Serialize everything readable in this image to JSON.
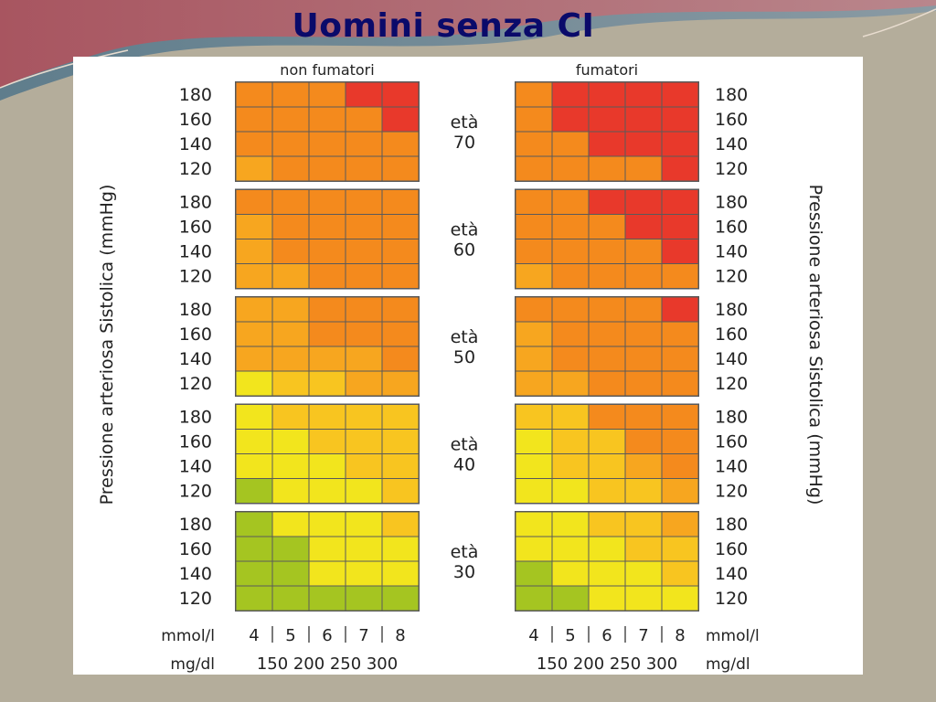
{
  "slide": {
    "title": "Uomini senza CI"
  },
  "chart_data": {
    "type": "heatmap",
    "panels": [
      {
        "name": "non fumatori"
      },
      {
        "name": "fumatori"
      }
    ],
    "age_groups": [
      {
        "label": "età",
        "value": "70"
      },
      {
        "label": "età",
        "value": "60"
      },
      {
        "label": "età",
        "value": "50"
      },
      {
        "label": "età",
        "value": "40"
      },
      {
        "label": "età",
        "value": "30"
      }
    ],
    "rows_sbp": [
      "180",
      "160",
      "140",
      "120"
    ],
    "cols_mmol": [
      "4",
      "5",
      "6",
      "7",
      "8"
    ],
    "cols_mgdl": [
      "150",
      "200",
      "250",
      "300"
    ],
    "unit_mmol": "mmol/l",
    "unit_mgdl": "mg/dl",
    "ylabel": "Pressione arteriosa Sistolica (mmHg)",
    "risk_colors": {
      "1": "#a5c521",
      "2": "#f2e51d",
      "3": "#f8c520",
      "4": "#f7a61f",
      "5": "#f48a1d",
      "6": "#f07320",
      "7": "#e8392b"
    },
    "risk_levels": {
      "non fumatori": [
        [
          [
            5,
            5,
            5,
            7,
            7
          ],
          [
            5,
            5,
            5,
            5,
            7
          ],
          [
            5,
            5,
            5,
            5,
            5
          ],
          [
            4,
            5,
            5,
            5,
            5
          ]
        ],
        [
          [
            5,
            5,
            5,
            5,
            5
          ],
          [
            4,
            5,
            5,
            5,
            5
          ],
          [
            4,
            5,
            5,
            5,
            5
          ],
          [
            4,
            4,
            5,
            5,
            5
          ]
        ],
        [
          [
            4,
            4,
            5,
            5,
            5
          ],
          [
            4,
            4,
            5,
            5,
            5
          ],
          [
            4,
            4,
            4,
            4,
            5
          ],
          [
            2,
            3,
            3,
            4,
            4
          ]
        ],
        [
          [
            2,
            3,
            3,
            3,
            3
          ],
          [
            2,
            2,
            3,
            3,
            3
          ],
          [
            2,
            2,
            2,
            3,
            3
          ],
          [
            1,
            2,
            2,
            2,
            3
          ]
        ],
        [
          [
            1,
            2,
            2,
            2,
            3
          ],
          [
            1,
            1,
            2,
            2,
            2
          ],
          [
            1,
            1,
            2,
            2,
            2
          ],
          [
            1,
            1,
            1,
            1,
            1
          ]
        ]
      ],
      "fumatori": [
        [
          [
            5,
            7,
            7,
            7,
            7
          ],
          [
            5,
            7,
            7,
            7,
            7
          ],
          [
            5,
            5,
            7,
            7,
            7
          ],
          [
            5,
            5,
            5,
            5,
            7
          ]
        ],
        [
          [
            5,
            5,
            7,
            7,
            7
          ],
          [
            5,
            5,
            5,
            7,
            7
          ],
          [
            5,
            5,
            5,
            5,
            7
          ],
          [
            4,
            5,
            5,
            5,
            5
          ]
        ],
        [
          [
            5,
            5,
            5,
            5,
            7
          ],
          [
            4,
            5,
            5,
            5,
            5
          ],
          [
            4,
            5,
            5,
            5,
            5
          ],
          [
            4,
            4,
            5,
            5,
            5
          ]
        ],
        [
          [
            3,
            3,
            5,
            5,
            5
          ],
          [
            2,
            3,
            3,
            5,
            5
          ],
          [
            2,
            3,
            3,
            4,
            5
          ],
          [
            2,
            2,
            3,
            3,
            4
          ]
        ],
        [
          [
            2,
            2,
            3,
            3,
            4
          ],
          [
            2,
            2,
            2,
            3,
            3
          ],
          [
            1,
            2,
            2,
            2,
            3
          ],
          [
            1,
            1,
            2,
            2,
            2
          ]
        ]
      ]
    }
  }
}
